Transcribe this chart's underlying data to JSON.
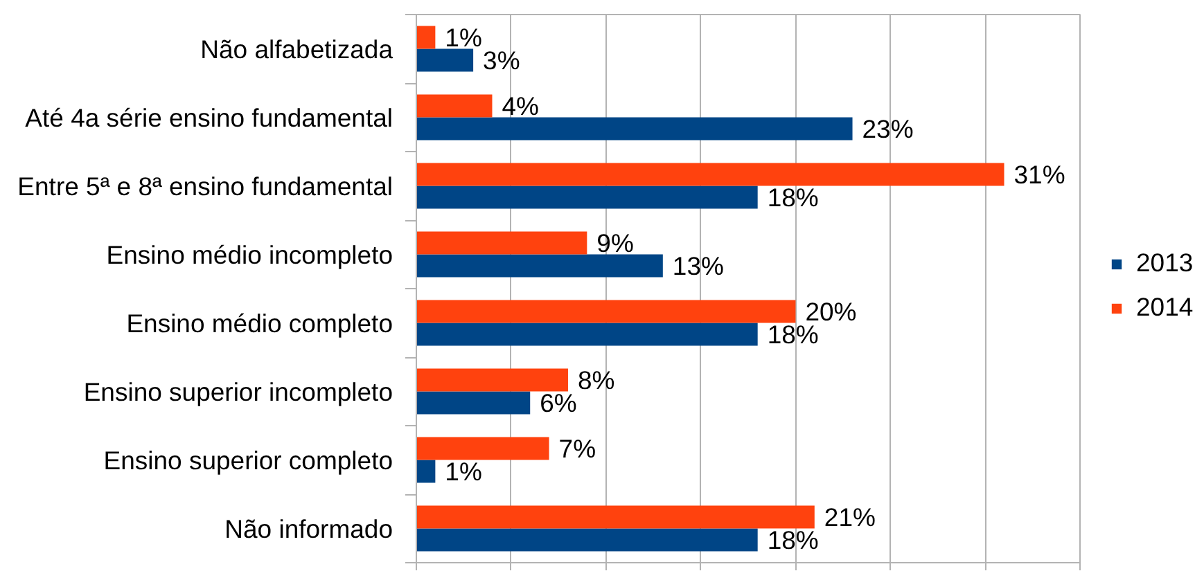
{
  "chart_data": {
    "type": "bar",
    "orientation": "horizontal",
    "categories": [
      "Não alfabetizada",
      "Até 4a série ensino fundamental",
      "Entre 5ª e 8ª ensino fundamental",
      "Ensino médio incompleto",
      "Ensino médio completo",
      "Ensino superior incompleto",
      "Ensino superior completo",
      "Não informado"
    ],
    "series": [
      {
        "name": "2013",
        "color": "#004586",
        "values": [
          3,
          23,
          18,
          13,
          18,
          6,
          1,
          18
        ],
        "value_labels": [
          "3%",
          "23%",
          "18%",
          "13%",
          "18%",
          "6%",
          "1%",
          "18%"
        ]
      },
      {
        "name": "2014",
        "color": "#ff420e",
        "values": [
          1,
          4,
          31,
          9,
          20,
          8,
          7,
          21
        ],
        "value_labels": [
          "1%",
          "4%",
          "31%",
          "9%",
          "20%",
          "8%",
          "7%",
          "21%"
        ]
      }
    ],
    "xlim": [
      0,
      35
    ],
    "xticks": [
      {
        "value": 0,
        "label": null
      },
      {
        "value": 5,
        "label": null
      },
      {
        "value": 10,
        "label": null
      },
      {
        "value": 15,
        "label": null
      },
      {
        "value": 20,
        "label": null
      },
      {
        "value": 25,
        "label": null
      },
      {
        "value": 30,
        "label": null
      },
      {
        "value": 35,
        "label": null
      }
    ],
    "tick_labels": "y",
    "grid": "x",
    "legend": "right"
  }
}
